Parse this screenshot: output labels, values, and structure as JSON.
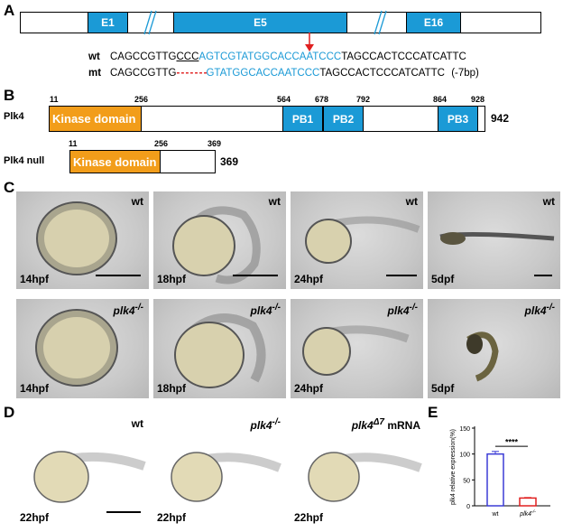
{
  "panels": {
    "a": "A",
    "b": "B",
    "c": "C",
    "d": "D",
    "e": "E"
  },
  "gene_structure": {
    "exons": [
      "E1",
      "E5",
      "E16"
    ],
    "sequences": {
      "wt_label": "wt",
      "wt_prefix": "CAGCCGTTG",
      "wt_underlined": "CCC",
      "wt_blue": "AGTCGTATGGCACCAATCCC",
      "wt_suffix": "TAGCCACTCCCATCATTC",
      "mt_label": "mt",
      "mt_prefix": "CAGCCGTTG",
      "mt_deletion": "- - - - - - -",
      "mt_blue": "GTATGGCACCAATCCC",
      "mt_suffix": "TAGCCACTCCCATCATTC",
      "mt_note": "(-7bp)"
    }
  },
  "protein": {
    "full_label": "Plk4",
    "full_length": "942",
    "kinase_label": "Kinase domain",
    "positions_top": [
      "11",
      "256",
      "564",
      "678",
      "792",
      "864",
      "928"
    ],
    "pb_labels": [
      "PB1",
      "PB2",
      "PB3"
    ],
    "null_label": "Plk4 null",
    "null_length": "369",
    "null_positions": [
      "11",
      "256",
      "369"
    ]
  },
  "panel_c": {
    "row1_genotype": [
      "wt",
      "wt",
      "wt",
      "wt"
    ],
    "row2_genotype": [
      "plk4",
      "plk4",
      "plk4",
      "plk4"
    ],
    "genotype_sup": "-/-",
    "stages": [
      "14hpf",
      "18hpf",
      "24hpf",
      "5dpf"
    ]
  },
  "panel_d": {
    "genotypes": [
      "wt",
      "plk4",
      "plk4"
    ],
    "sups": [
      "",
      "-/-",
      "Δ7"
    ],
    "suffix3": " mRNA",
    "stage": "22hpf"
  },
  "chart_data": {
    "type": "bar",
    "categories": [
      "wt",
      "plk4-/-"
    ],
    "values": [
      100,
      15
    ],
    "errors": [
      5,
      1
    ],
    "ylabel": "plk4 relative expression(%)",
    "ylim": [
      0,
      150
    ],
    "yticks": [
      "0",
      "50",
      "100",
      "150"
    ],
    "significance": "****",
    "colors": [
      "#3b3bd6",
      "#e02020"
    ],
    "xlabel_wt": "wt",
    "xlabel_mut": "plk4",
    "xlabel_mut_sup": "-/-"
  },
  "colors": {
    "exon": "#1b9ad6",
    "kinase": "#f29d1a",
    "arrow": "#e02020"
  }
}
